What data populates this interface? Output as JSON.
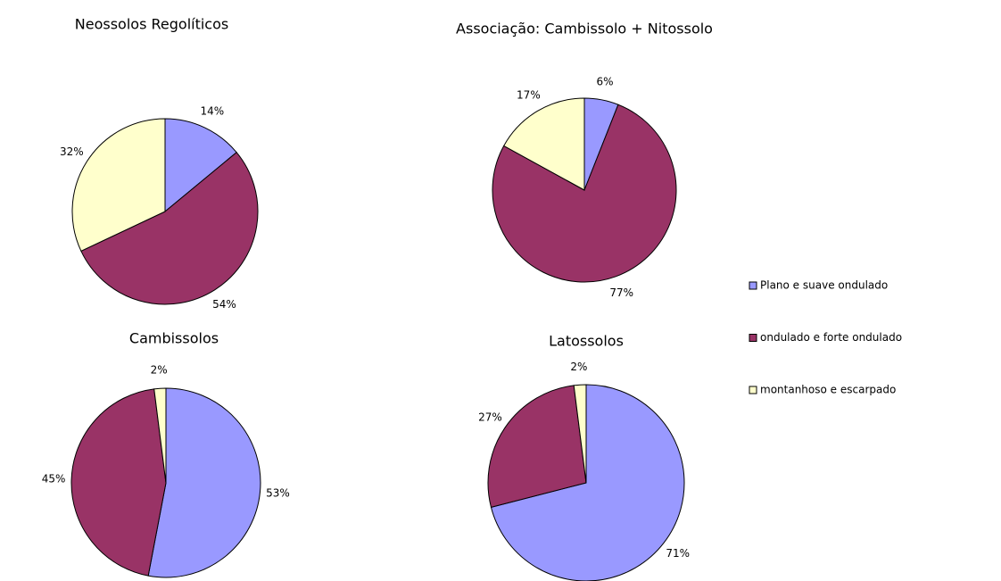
{
  "chart_data": [
    {
      "type": "pie",
      "title": "Neossolos Regolíticos",
      "values": [
        14,
        54,
        32
      ],
      "value_labels": [
        "14%",
        "54%",
        "32%"
      ]
    },
    {
      "type": "pie",
      "title": "Associação: Cambissolo + Nitossolo",
      "values": [
        6,
        77,
        17
      ],
      "value_labels": [
        "6%",
        "77%",
        "17%"
      ]
    },
    {
      "type": "pie",
      "title": "Cambissolos",
      "values": [
        53,
        45,
        2
      ],
      "value_labels": [
        "53%",
        "45%",
        "2%"
      ]
    },
    {
      "type": "pie",
      "title": "Latossolos",
      "values": [
        71,
        27,
        2
      ],
      "value_labels": [
        "71%",
        "27%",
        "2%"
      ]
    }
  ],
  "legend": {
    "labels": [
      "Plano e suave ondulado",
      "ondulado e forte ondulado",
      "montanhoso e escarpado"
    ],
    "colors": [
      "#9999ff",
      "#993366",
      "#ffffcc"
    ]
  }
}
